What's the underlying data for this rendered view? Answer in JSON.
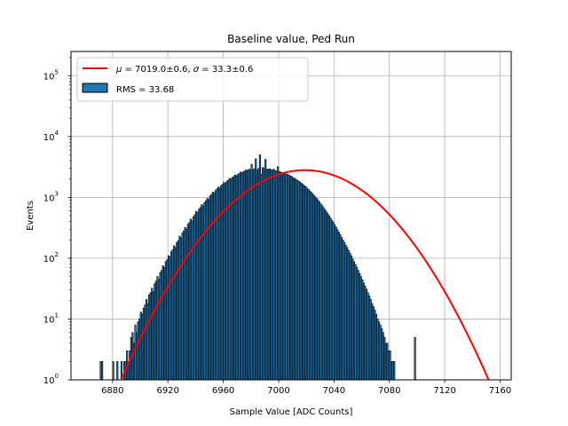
{
  "chart_data": {
    "type": "bar",
    "title": "Baseline value, Ped Run",
    "xlabel": "Sample Value [ADC Counts]",
    "ylabel": "Events",
    "xlim": [
      6850,
      7168
    ],
    "ylim": [
      1,
      250000
    ],
    "yscale": "log",
    "grid": true,
    "legend_position": "upper-left",
    "x_ticks": [
      "6880",
      "6920",
      "6960",
      "7000",
      "7040",
      "7080",
      "7120",
      "7160"
    ],
    "y_ticks": [
      {
        "base": "10",
        "exp": "0"
      },
      {
        "base": "10",
        "exp": "1"
      },
      {
        "base": "10",
        "exp": "2"
      },
      {
        "base": "10",
        "exp": "3"
      },
      {
        "base": "10",
        "exp": "4"
      },
      {
        "base": "10",
        "exp": "5"
      }
    ],
    "histogram": {
      "name": "RMS = 33.68",
      "color": "#1f77b4",
      "edgecolor": "#000000",
      "bin_start": 6871,
      "bin_width": 1,
      "counts": [
        2,
        2,
        0,
        0,
        0,
        0,
        0,
        0,
        0,
        2,
        0,
        1,
        2,
        0,
        1,
        2,
        1,
        2,
        2,
        3,
        2,
        3,
        5,
        6,
        4,
        8,
        6,
        9,
        10,
        13,
        12,
        15,
        17,
        21,
        18,
        25,
        27,
        32,
        28,
        38,
        42,
        50,
        45,
        58,
        63,
        75,
        70,
        88,
        95,
        110,
        105,
        128,
        138,
        160,
        150,
        182,
        195,
        230,
        215,
        260,
        280,
        320,
        300,
        360,
        385,
        440,
        410,
        480,
        520,
        590,
        560,
        640,
        680,
        760,
        720,
        820,
        880,
        960,
        920,
        1050,
        1120,
        1220,
        1180,
        1300,
        1380,
        1480,
        1420,
        1560,
        1640,
        1760,
        1700,
        1820,
        1900,
        2050,
        1980,
        2120,
        2180,
        2320,
        2250,
        2380,
        2450,
        2600,
        2520,
        2640,
        2700,
        2820,
        2750,
        2880,
        2900,
        3500,
        2850,
        2950,
        4300,
        2800,
        3000,
        5000,
        2400,
        3100,
        2980,
        4200,
        2900,
        2880,
        2950,
        2850,
        2800,
        2900,
        2750,
        2700,
        3200,
        2650,
        2600,
        2550,
        2500,
        2450,
        2380,
        2400,
        2300,
        2250,
        2200,
        2100,
        2050,
        1980,
        1900,
        1850,
        1780,
        1700,
        1640,
        1560,
        1500,
        1420,
        1360,
        1280,
        1220,
        1150,
        1080,
        1020,
        960,
        900,
        840,
        780,
        730,
        680,
        630,
        580,
        540,
        500,
        460,
        420,
        390,
        355,
        325,
        295,
        270,
        245,
        220,
        200,
        182,
        165,
        150,
        135,
        122,
        110,
        98,
        88,
        79,
        71,
        63,
        56,
        50,
        44,
        39,
        35,
        31,
        27,
        24,
        21,
        18,
        16,
        14,
        12,
        10,
        9,
        8,
        7,
        6,
        5,
        4,
        4,
        3,
        3,
        2,
        2,
        2,
        1,
        1,
        1,
        1,
        1,
        1,
        0,
        0,
        0,
        0,
        1,
        0,
        0,
        0,
        5
      ]
    },
    "fit": {
      "name": "μ = 7019.0±0.6, σ = 33.3±0.6",
      "label_parts": {
        "mu": "μ",
        "mu_eq": " = 7019.0±0.6, ",
        "sigma": "σ",
        "sigma_eq": " = 33.3±0.6"
      },
      "color": "#ff0000",
      "mu": 7019.0,
      "sigma": 33.3,
      "amplitude": 2800
    }
  }
}
